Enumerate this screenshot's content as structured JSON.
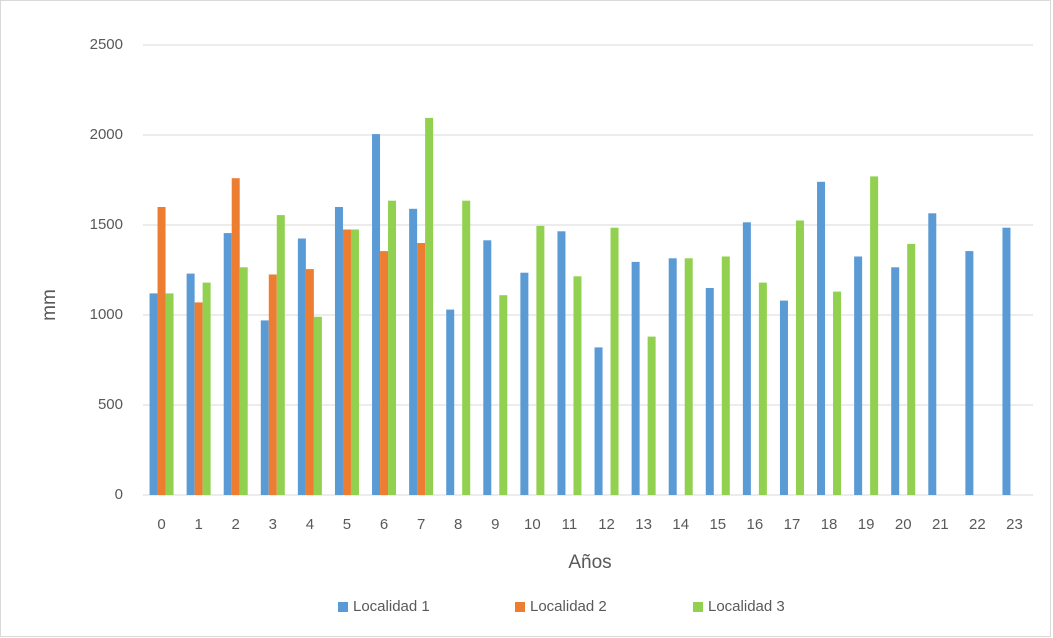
{
  "chart_data": {
    "type": "bar",
    "x_label": "Años",
    "y_label": "mm",
    "categories": [
      "0",
      "1",
      "2",
      "3",
      "4",
      "5",
      "6",
      "7",
      "8",
      "9",
      "10",
      "11",
      "12",
      "13",
      "14",
      "15",
      "16",
      "17",
      "18",
      "19",
      "20",
      "21",
      "22",
      "23"
    ],
    "series": [
      {
        "name": "Localidad 1",
        "color": "#5b9bd5",
        "values": [
          1120,
          1230,
          1455,
          970,
          1425,
          1600,
          2005,
          1590,
          1030,
          1415,
          1235,
          1465,
          820,
          1295,
          1315,
          1150,
          1515,
          1080,
          1740,
          1325,
          1265,
          1565,
          1355,
          1485
        ]
      },
      {
        "name": "Localidad 2",
        "color": "#ed7d31",
        "values": [
          1600,
          1070,
          1760,
          1225,
          1255,
          1475,
          1355,
          1400,
          null,
          null,
          null,
          null,
          null,
          null,
          null,
          null,
          null,
          null,
          null,
          null,
          null,
          null,
          null,
          null
        ]
      },
      {
        "name": "Localidad 3",
        "color": "#92d050",
        "values": [
          1120,
          1180,
          1265,
          1555,
          990,
          1475,
          1635,
          2095,
          1635,
          1110,
          1495,
          1215,
          1485,
          880,
          1315,
          1325,
          1180,
          1525,
          1130,
          1770,
          1395,
          null,
          null,
          null
        ]
      }
    ],
    "ylim": [
      0,
      2500
    ],
    "yticks": [
      0,
      500,
      1000,
      1500,
      2000,
      2500
    ],
    "grid": true,
    "legend": "bottom"
  }
}
